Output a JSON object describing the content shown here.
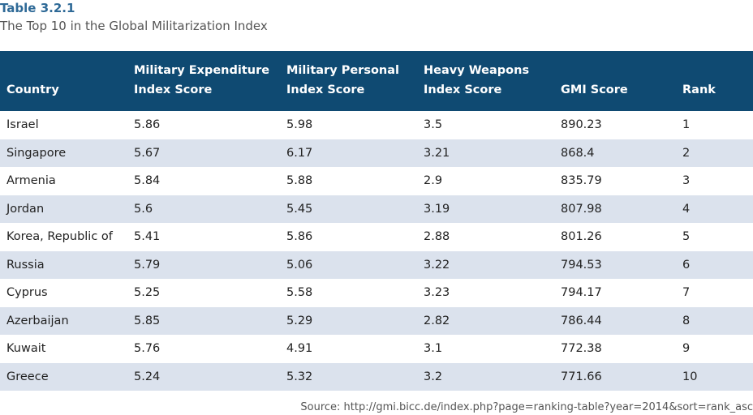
{
  "caption": {
    "label": "Table 3.2.1",
    "title": "The Top 10 in the Global Militarization Index"
  },
  "table": {
    "headers": [
      [
        "Country"
      ],
      [
        "Military Expenditure",
        "Index Score"
      ],
      [
        "Military Personal",
        "Index Score"
      ],
      [
        "Heavy Weapons",
        "Index Score"
      ],
      [
        "GMI Score"
      ],
      [
        "Rank"
      ]
    ],
    "rows": [
      [
        "Israel",
        "5.86",
        "5.98",
        "3.5",
        "890.23",
        "1"
      ],
      [
        "Singapore",
        "5.67",
        "6.17",
        "3.21",
        "868.4",
        "2"
      ],
      [
        "Armenia",
        "5.84",
        "5.88",
        "2.9",
        "835.79",
        "3"
      ],
      [
        "Jordan",
        "5.6",
        "5.45",
        "3.19",
        "807.98",
        "4"
      ],
      [
        "Korea, Republic of",
        "5.41",
        "5.86",
        "2.88",
        "801.26",
        "5"
      ],
      [
        "Russia",
        "5.79",
        "5.06",
        "3.22",
        "794.53",
        "6"
      ],
      [
        "Cyprus",
        "5.25",
        "5.58",
        "3.23",
        "794.17",
        "7"
      ],
      [
        "Azerbaijan",
        "5.85",
        "5.29",
        "2.82",
        "786.44",
        "8"
      ],
      [
        "Kuwait",
        "5.76",
        "4.91",
        "3.1",
        "772.38",
        "9"
      ],
      [
        "Greece",
        "5.24",
        "5.32",
        "3.2",
        "771.66",
        "10"
      ]
    ]
  },
  "source": "Source: http://gmi.bicc.de/index.php?page=ranking-table?year=2014&sort=rank_asc",
  "colors": {
    "header_bg": "#0f4a72",
    "caption_label": "#2f6a97",
    "stripe": "#dbe2ed"
  }
}
